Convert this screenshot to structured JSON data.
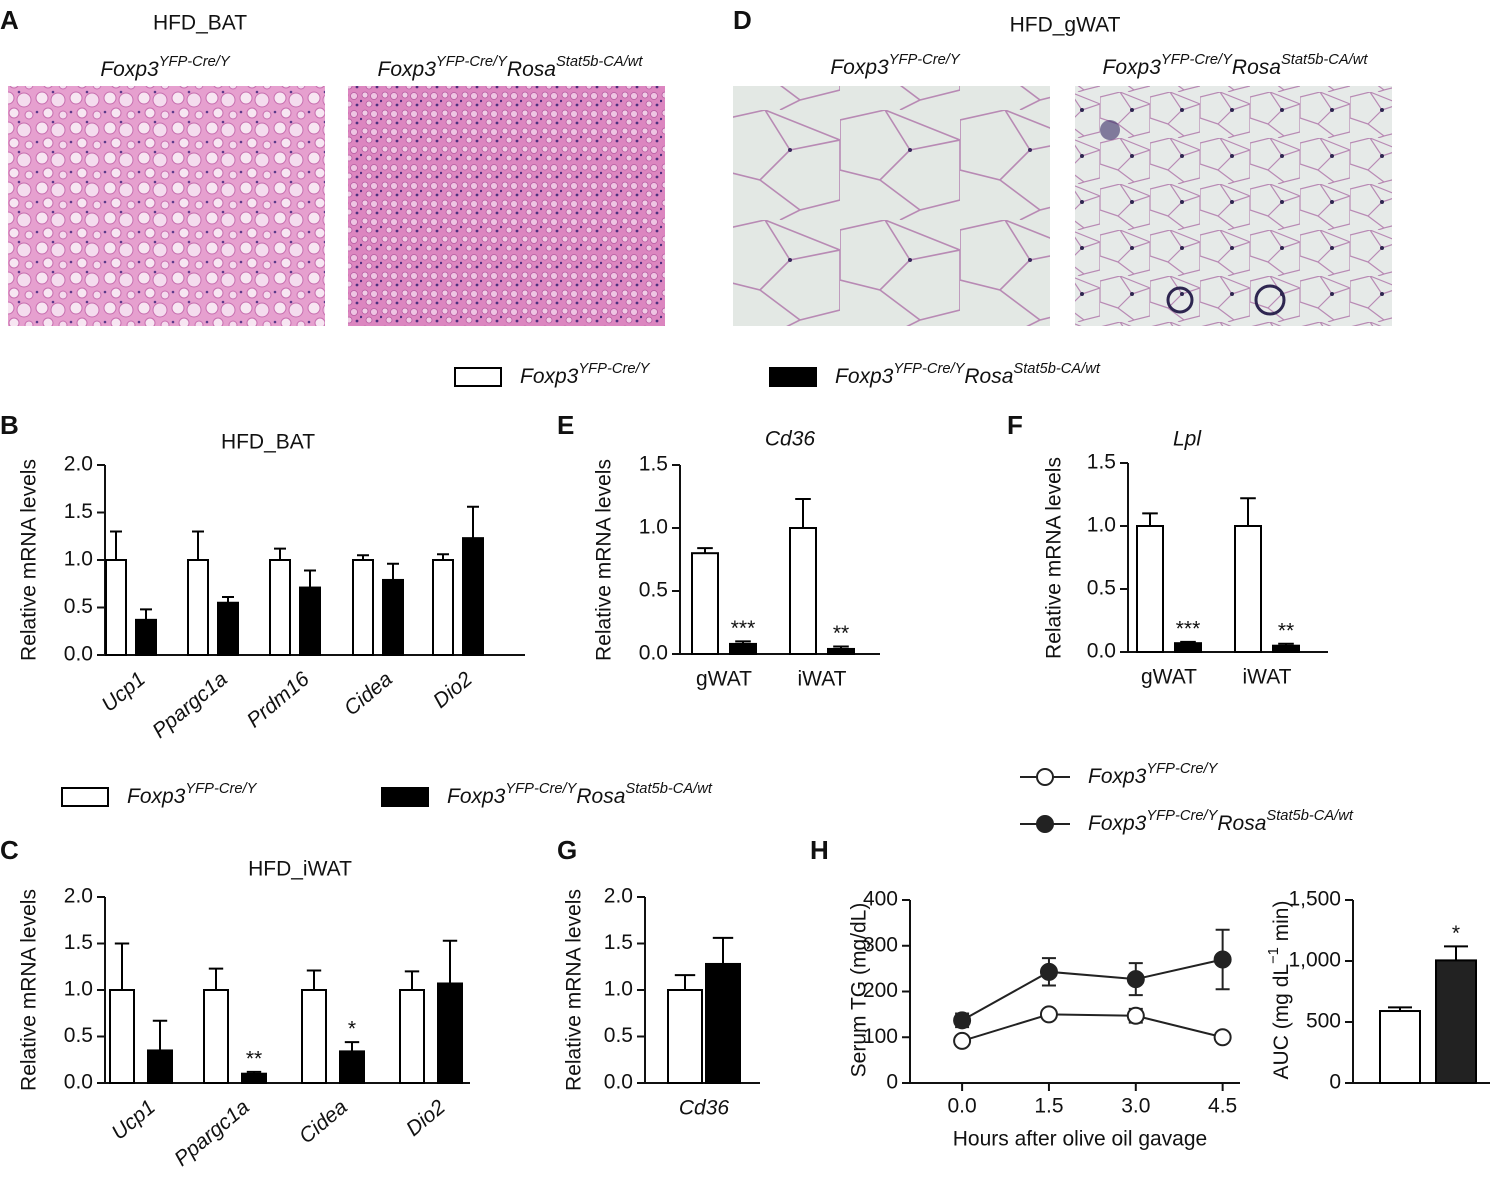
{
  "panel_letters": [
    "A",
    "B",
    "C",
    "D",
    "E",
    "F",
    "G",
    "H"
  ],
  "histology": [
    {
      "title": "HFD_BAT",
      "labels": [
        {
          "parts": [
            {
              "text": "Foxp3"
            },
            {
              "text": "YFP-Cre/Y",
              "sup": true
            }
          ]
        },
        {
          "parts": [
            {
              "text": "Foxp3"
            },
            {
              "text": "YFP-Cre/Y",
              "sup": true
            },
            {
              "text": "Rosa"
            },
            {
              "text": "Stat5b-CA/wt",
              "sup": true
            }
          ]
        }
      ]
    },
    {
      "title": "HFD_gWAT",
      "labels": [
        {
          "parts": [
            {
              "text": "Foxp3"
            },
            {
              "text": "YFP-Cre/Y",
              "sup": true
            }
          ]
        },
        {
          "parts": [
            {
              "text": "Foxp3"
            },
            {
              "text": "YFP-Cre/Y",
              "sup": true
            },
            {
              "text": "Rosa"
            },
            {
              "text": "Stat5b-CA/wt",
              "sup": true
            }
          ]
        }
      ]
    }
  ],
  "legends": [
    {
      "style": "box",
      "entries": [
        {
          "fill": "#ffffff",
          "label": {
            "parts": [
              {
                "text": "Foxp3"
              },
              {
                "text": "YFP-Cre/Y",
                "sup": true
              }
            ]
          }
        },
        {
          "fill": "#000000",
          "label": {
            "parts": [
              {
                "text": "Foxp3"
              },
              {
                "text": "YFP-Cre/Y",
                "sup": true
              },
              {
                "text": "Rosa"
              },
              {
                "text": "Stat5b-CA/wt",
                "sup": true
              }
            ]
          }
        }
      ]
    },
    {
      "style": "box",
      "entries": [
        {
          "fill": "#ffffff",
          "label": {
            "parts": [
              {
                "text": "Foxp3"
              },
              {
                "text": "YFP-Cre/Y",
                "sup": true
              }
            ]
          }
        },
        {
          "fill": "#000000",
          "label": {
            "parts": [
              {
                "text": "Foxp3"
              },
              {
                "text": "YFP-Cre/Y",
                "sup": true
              },
              {
                "text": "Rosa"
              },
              {
                "text": "Stat5b-CA/wt",
                "sup": true
              }
            ]
          }
        }
      ]
    },
    {
      "style": "line",
      "entries": [
        {
          "fill": "#ffffff",
          "label": {
            "parts": [
              {
                "text": "Foxp3"
              },
              {
                "text": "YFP-Cre/Y",
                "sup": true
              }
            ]
          }
        },
        {
          "fill": "#222222",
          "label": {
            "parts": [
              {
                "text": "Foxp3"
              },
              {
                "text": "YFP-Cre/Y",
                "sup": true
              },
              {
                "text": "Rosa"
              },
              {
                "text": "Stat5b-CA/wt",
                "sup": true
              }
            ]
          }
        }
      ]
    }
  ],
  "chart_data": [
    {
      "type": "bar",
      "title": "HFD_BAT",
      "ylabel": "Relative mRNA levels",
      "italic_categories": true,
      "categories": [
        "Ucp1",
        "Ppargc1a",
        "Prdm16",
        "Cidea",
        "Dio2"
      ],
      "ylim": [
        0,
        2
      ],
      "yticks": [
        {
          "value": 0,
          "label": "0.0"
        },
        {
          "value": 0.5,
          "label": "0.5"
        },
        {
          "value": 1,
          "label": "1.0"
        },
        {
          "value": 1.5,
          "label": "1.5"
        },
        {
          "value": 2,
          "label": "2.0"
        }
      ],
      "series": [
        {
          "color": "#ffffff",
          "values": [
            1.0,
            1.0,
            1.0,
            1.0,
            1.0
          ],
          "errors": [
            0.3,
            0.3,
            0.12,
            0.05,
            0.06
          ]
        },
        {
          "color": "#000000",
          "values": [
            0.37,
            0.55,
            0.71,
            0.79,
            1.23
          ],
          "errors": [
            0.11,
            0.06,
            0.18,
            0.17,
            0.33
          ]
        }
      ]
    },
    {
      "type": "bar",
      "title": "Cd36",
      "title_italic": true,
      "ylabel": "Relative mRNA levels",
      "categories": [
        "gWAT",
        "iWAT"
      ],
      "ylim": [
        0,
        1.5
      ],
      "yticks": [
        {
          "value": 0,
          "label": "0.0"
        },
        {
          "value": 0.5,
          "label": "0.5"
        },
        {
          "value": 1,
          "label": "1.0"
        },
        {
          "value": 1.5,
          "label": "1.5"
        }
      ],
      "series": [
        {
          "color": "#ffffff",
          "values": [
            0.8,
            1.0
          ],
          "errors": [
            0.04,
            0.23
          ]
        },
        {
          "color": "#000000",
          "values": [
            0.08,
            0.04
          ],
          "errors": [
            0.02,
            0.02
          ],
          "annotations": [
            "***",
            "**"
          ]
        }
      ]
    },
    {
      "type": "bar",
      "title": "Lpl",
      "title_italic": true,
      "ylabel": "Relative mRNA levels",
      "categories": [
        "gWAT",
        "iWAT"
      ],
      "ylim": [
        0,
        1.5
      ],
      "yticks": [
        {
          "value": 0,
          "label": "0.0"
        },
        {
          "value": 0.5,
          "label": "0.5"
        },
        {
          "value": 1,
          "label": "1.0"
        },
        {
          "value": 1.5,
          "label": "1.5"
        }
      ],
      "series": [
        {
          "color": "#ffffff",
          "values": [
            1.0,
            1.0
          ],
          "errors": [
            0.1,
            0.22
          ]
        },
        {
          "color": "#000000",
          "values": [
            0.07,
            0.05
          ],
          "errors": [
            0.01,
            0.015
          ],
          "annotations": [
            "***",
            "**"
          ]
        }
      ]
    },
    {
      "type": "bar",
      "title": "HFD_iWAT",
      "ylabel": "Relative mRNA levels",
      "italic_categories": true,
      "categories": [
        "Ucp1",
        "Ppargc1a",
        "Cidea",
        "Dio2"
      ],
      "ylim": [
        0,
        2
      ],
      "yticks": [
        {
          "value": 0,
          "label": "0.0"
        },
        {
          "value": 0.5,
          "label": "0.5"
        },
        {
          "value": 1,
          "label": "1.0"
        },
        {
          "value": 1.5,
          "label": "1.5"
        },
        {
          "value": 2,
          "label": "2.0"
        }
      ],
      "series": [
        {
          "color": "#ffffff",
          "values": [
            1.0,
            1.0,
            1.0,
            1.0
          ],
          "errors": [
            0.5,
            0.23,
            0.21,
            0.2
          ]
        },
        {
          "color": "#000000",
          "values": [
            0.35,
            0.1,
            0.34,
            1.07
          ],
          "errors": [
            0.32,
            0.02,
            0.1,
            0.46
          ],
          "annotations": [
            null,
            "**",
            "*",
            null
          ]
        }
      ]
    },
    {
      "type": "bar",
      "ylabel": "Relative mRNA levels",
      "italic_categories": true,
      "categories": [
        "Cd36"
      ],
      "ylim": [
        0,
        2
      ],
      "yticks": [
        {
          "value": 0,
          "label": "0.0"
        },
        {
          "value": 0.5,
          "label": "0.5"
        },
        {
          "value": 1,
          "label": "1.0"
        },
        {
          "value": 1.5,
          "label": "1.5"
        },
        {
          "value": 2,
          "label": "2.0"
        }
      ],
      "series": [
        {
          "color": "#ffffff",
          "values": [
            1.0
          ],
          "errors": [
            0.16
          ]
        },
        {
          "color": "#000000",
          "values": [
            1.28
          ],
          "errors": [
            0.28
          ]
        }
      ]
    },
    {
      "type": "line",
      "xlabel": "Hours after olive oil gavage",
      "ylabel": "Serum TG (mg/dL)",
      "x": [
        0,
        1.5,
        3,
        4.5
      ],
      "xlim": [
        -0.9,
        4.8
      ],
      "xticks": [
        {
          "value": 0,
          "label": "0.0"
        },
        {
          "value": 1.5,
          "label": "1.5"
        },
        {
          "value": 3,
          "label": "3.0"
        },
        {
          "value": 4.5,
          "label": "4.5"
        }
      ],
      "ylim": [
        0,
        400
      ],
      "yticks": [
        0,
        100,
        200,
        300,
        400
      ],
      "series": [
        {
          "color": "#222222",
          "marker_fill": "#ffffff",
          "values": [
            92,
            150,
            147,
            100
          ],
          "errors": [
            5,
            6,
            15,
            5
          ]
        },
        {
          "color": "#222222",
          "marker_fill": "#222222",
          "values": [
            137,
            243,
            227,
            270
          ],
          "errors": [
            15,
            30,
            35,
            65
          ]
        }
      ]
    },
    {
      "type": "bar",
      "ylabel": {
        "parts": [
          {
            "text": "AUC (mg dL"
          },
          {
            "text": "−1",
            "sup": true
          },
          {
            "text": " min)"
          }
        ]
      },
      "categories": [
        null
      ],
      "ylim": [
        0,
        1500
      ],
      "yticks": [
        0,
        500,
        {
          "value": 1000,
          "label": "1,000"
        },
        {
          "value": 1500,
          "label": "1,500"
        }
      ],
      "series": [
        {
          "color": "#ffffff",
          "values": [
            590
          ],
          "errors": [
            30
          ]
        },
        {
          "color": "#222222",
          "values": [
            1005
          ],
          "errors": [
            115
          ],
          "annotations": [
            "*"
          ]
        }
      ]
    }
  ]
}
